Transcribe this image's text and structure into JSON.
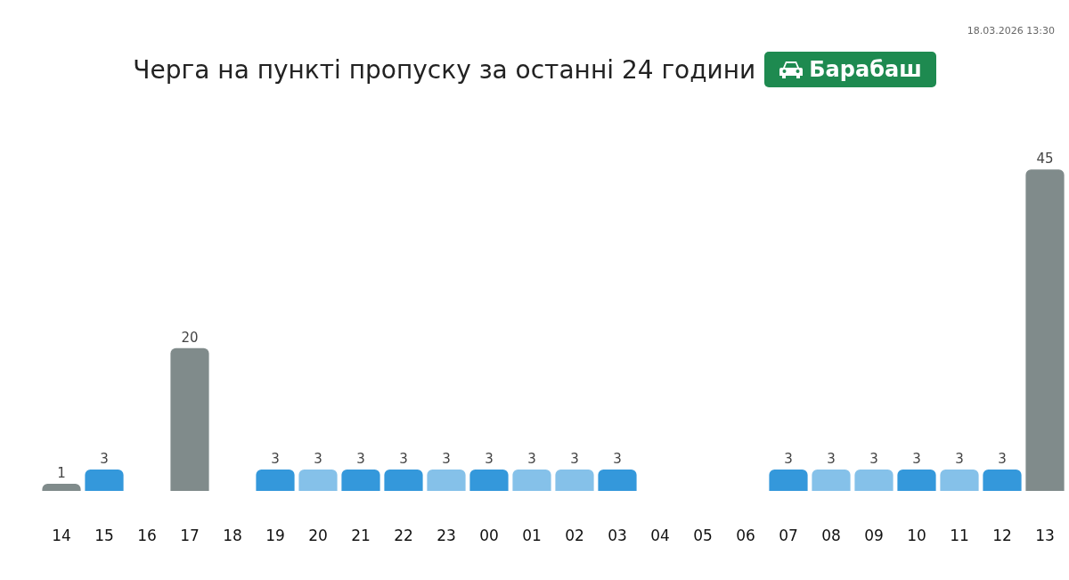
{
  "chart_data": {
    "type": "bar",
    "title": "Черга на пункті пропуску за останні 24 години",
    "subtitle": "Барабаш",
    "annotations": [
      "18.03.2026 13:30"
    ],
    "categories": [
      "14",
      "15",
      "16",
      "17",
      "18",
      "19",
      "20",
      "21",
      "22",
      "23",
      "00",
      "01",
      "02",
      "03",
      "04",
      "05",
      "06",
      "07",
      "08",
      "09",
      "10",
      "11",
      "12",
      "13"
    ],
    "values": [
      1,
      3,
      null,
      20,
      null,
      3,
      3,
      3,
      3,
      3,
      3,
      3,
      3,
      3,
      null,
      null,
      null,
      3,
      3,
      3,
      3,
      3,
      3,
      45
    ],
    "colors": [
      "#808b8b",
      "#3498db",
      "#808b8b",
      "#808b8b",
      "#808b8b",
      "#3498db",
      "#85c1e9",
      "#3498db",
      "#3498db",
      "#85c1e9",
      "#3498db",
      "#85c1e9",
      "#85c1e9",
      "#3498db",
      "#3498db",
      "#3498db",
      "#3498db",
      "#3498db",
      "#85c1e9",
      "#85c1e9",
      "#3498db",
      "#85c1e9",
      "#3498db",
      "#808b8b"
    ],
    "data_labels": true,
    "grid": false,
    "legend": false
  }
}
